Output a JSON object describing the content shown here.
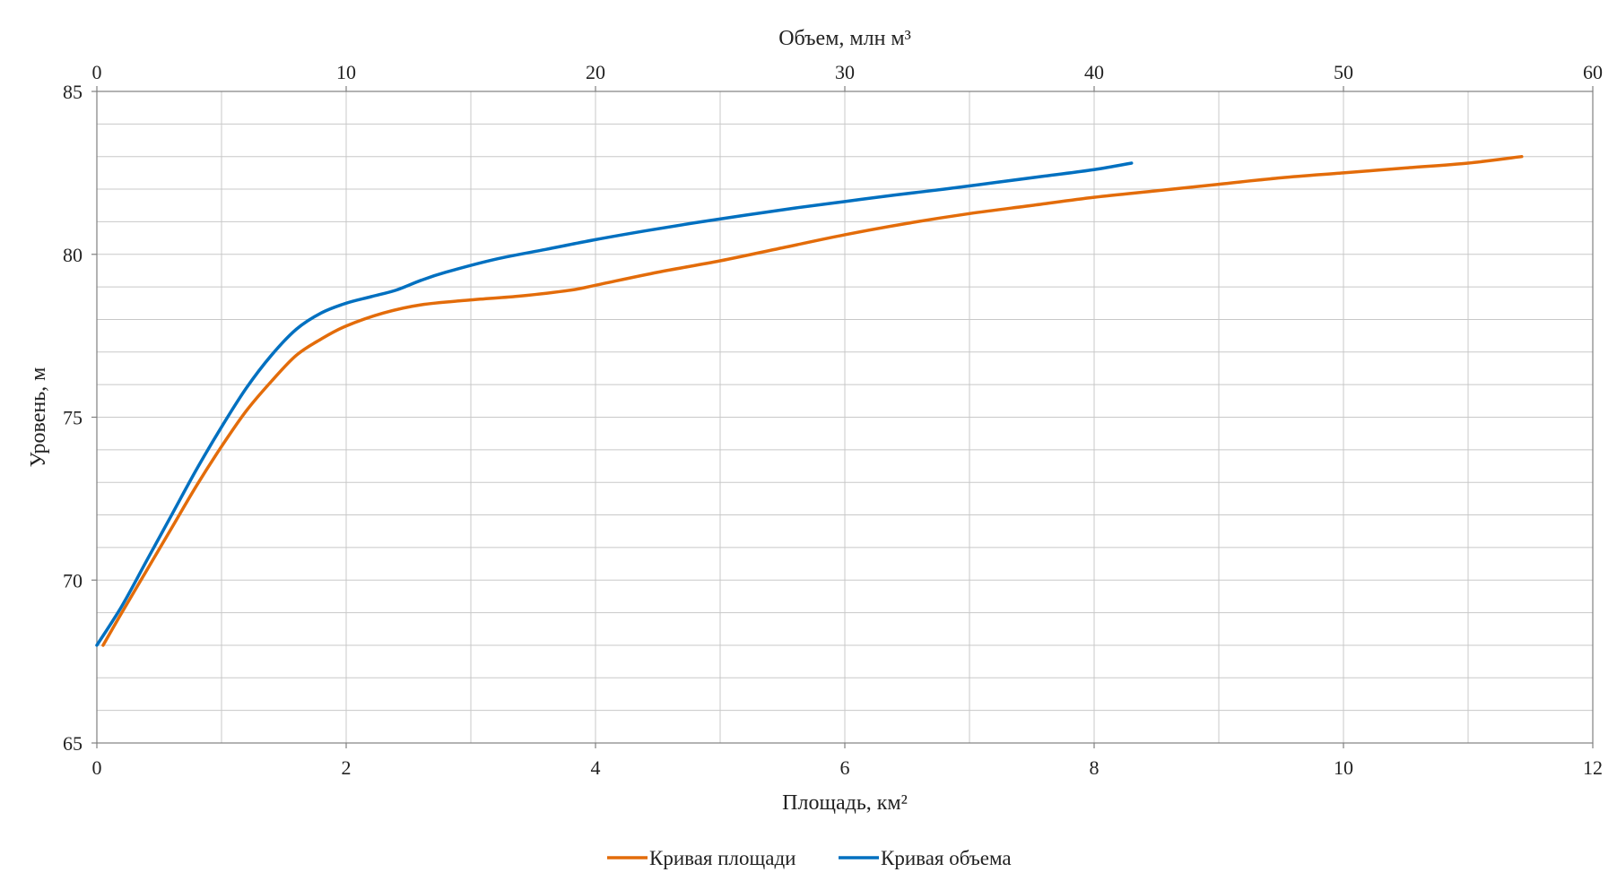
{
  "chart_data": {
    "type": "line",
    "xlabel_bottom": "Площадь, км²",
    "xlabel_top": "Объем, млн м³",
    "ylabel": "Уровень, м",
    "x_bottom_range": [
      0,
      12
    ],
    "x_top_range": [
      0,
      60
    ],
    "y_range": [
      65,
      85
    ],
    "x_bottom_ticks": [
      "0",
      "2",
      "4",
      "6",
      "8",
      "10",
      "12"
    ],
    "x_top_ticks": [
      "0",
      "10",
      "20",
      "30",
      "40",
      "50",
      "60"
    ],
    "y_ticks": [
      "65",
      "70",
      "75",
      "80",
      "85"
    ],
    "grid": true,
    "legend_position": "bottom",
    "series": [
      {
        "name": "Кривая площади",
        "axis": "bottom",
        "color": "#E36C0A",
        "x": [
          0.05,
          0.2,
          0.4,
          0.6,
          0.8,
          1.0,
          1.2,
          1.4,
          1.6,
          1.8,
          2.0,
          2.3,
          2.6,
          3.0,
          3.4,
          3.8,
          4.0,
          4.5,
          5.0,
          5.5,
          6.0,
          6.5,
          7.0,
          7.5,
          8.0,
          8.5,
          9.0,
          9.5,
          10.0,
          10.5,
          11.0,
          11.43
        ],
        "y": [
          68.0,
          69.0,
          70.3,
          71.6,
          72.9,
          74.1,
          75.2,
          76.1,
          76.9,
          77.4,
          77.8,
          78.2,
          78.45,
          78.6,
          78.72,
          78.9,
          79.05,
          79.45,
          79.8,
          80.2,
          80.6,
          80.95,
          81.25,
          81.5,
          81.75,
          81.95,
          82.15,
          82.35,
          82.5,
          82.65,
          82.8,
          83.0
        ]
      },
      {
        "name": "Кривая объема",
        "axis": "top",
        "color": "#0070C0",
        "x": [
          0.0,
          1.0,
          2.0,
          3.0,
          4.0,
          5.0,
          6.0,
          7.0,
          8.0,
          9.0,
          10.0,
          11.0,
          12.0,
          13.0,
          14.0,
          16.0,
          18.0,
          20.0,
          22.0,
          24.0,
          26.0,
          28.0,
          30.0,
          32.0,
          34.0,
          36.0,
          38.0,
          40.0,
          41.5
        ],
        "y": [
          68.0,
          69.2,
          70.6,
          72.0,
          73.4,
          74.7,
          75.9,
          76.9,
          77.7,
          78.2,
          78.5,
          78.7,
          78.9,
          79.2,
          79.45,
          79.85,
          80.15,
          80.45,
          80.72,
          80.97,
          81.2,
          81.42,
          81.62,
          81.82,
          82.0,
          82.2,
          82.4,
          82.6,
          82.8
        ]
      }
    ]
  }
}
